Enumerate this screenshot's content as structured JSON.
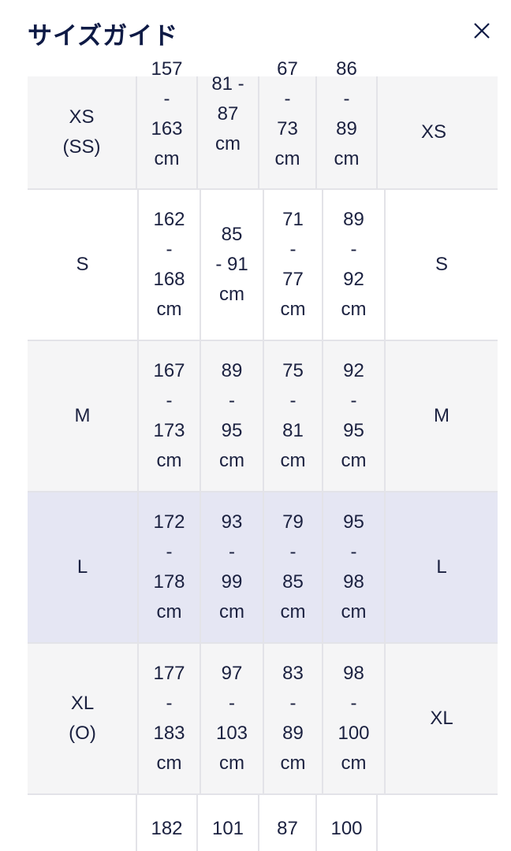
{
  "header": {
    "title": "サイズガイド",
    "close_icon": "close-x-icon"
  },
  "colors": {
    "title": "#0e1a45",
    "row_gray": "#f5f5f6",
    "row_highlight": "#e5e6f3",
    "border": "#e3e3e8"
  },
  "rows": [
    {
      "size": [
        "XS",
        "(SS)"
      ],
      "height": [
        "157",
        "-",
        "163",
        "cm"
      ],
      "bust": [
        "81 -",
        "87",
        "cm"
      ],
      "waist": [
        "67",
        "-",
        "73",
        "cm"
      ],
      "hip": [
        "86",
        "-",
        "89",
        "cm"
      ],
      "alt": [
        "XS"
      ]
    },
    {
      "size": [
        "S"
      ],
      "height": [
        "162",
        "-",
        "168",
        "cm"
      ],
      "bust": [
        "85",
        "- 91",
        "cm"
      ],
      "waist": [
        "71",
        "-",
        "77",
        "cm"
      ],
      "hip": [
        "89",
        "-",
        "92",
        "cm"
      ],
      "alt": [
        "S"
      ]
    },
    {
      "size": [
        "M"
      ],
      "height": [
        "167",
        "-",
        "173",
        "cm"
      ],
      "bust": [
        "89",
        "-",
        "95",
        "cm"
      ],
      "waist": [
        "75",
        "-",
        "81",
        "cm"
      ],
      "hip": [
        "92",
        "-",
        "95",
        "cm"
      ],
      "alt": [
        "M"
      ]
    },
    {
      "size": [
        "L"
      ],
      "height": [
        "172",
        "-",
        "178",
        "cm"
      ],
      "bust": [
        "93",
        "-",
        "99",
        "cm"
      ],
      "waist": [
        "79",
        "-",
        "85",
        "cm"
      ],
      "hip": [
        "95",
        "-",
        "98",
        "cm"
      ],
      "alt": [
        "L"
      ]
    },
    {
      "size": [
        "XL",
        "(O)"
      ],
      "height": [
        "177",
        "-",
        "183",
        "cm"
      ],
      "bust": [
        "97",
        "-",
        "103",
        "cm"
      ],
      "waist": [
        "83",
        "-",
        "89",
        "cm"
      ],
      "hip": [
        "98",
        "-",
        "100",
        "cm"
      ],
      "alt": [
        "XL"
      ]
    },
    {
      "size": [],
      "height": [
        "182"
      ],
      "bust": [
        "101"
      ],
      "waist": [
        "87"
      ],
      "hip": [
        "100"
      ],
      "alt": []
    }
  ]
}
